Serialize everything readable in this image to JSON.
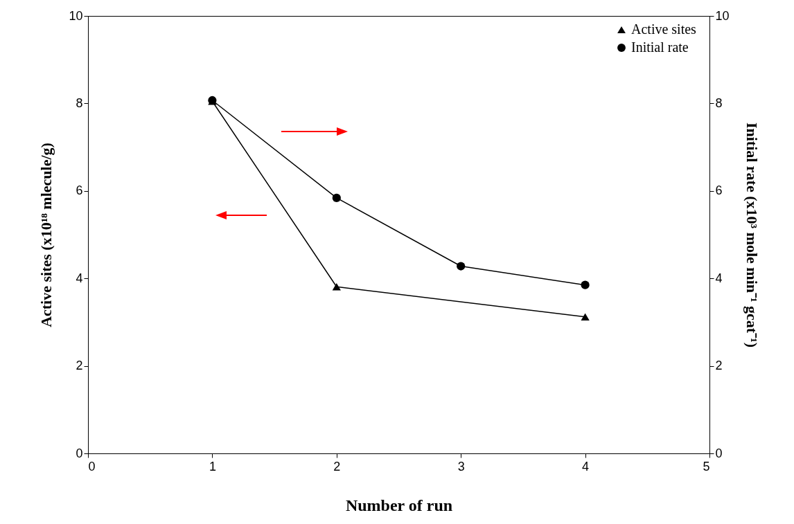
{
  "chart_data": {
    "type": "line",
    "xlabel": "Number of run",
    "ylabel": "Active sites (x10¹⁸ mlecule/g)",
    "y2label": "Initial rate (x10³ mole min⁻¹ gcat⁻¹)",
    "x": [
      1,
      2,
      3,
      4
    ],
    "series": [
      {
        "name": "Active sites",
        "color": "#000000",
        "marker": "triangle",
        "x": [
          1,
          2,
          4
        ],
        "values": [
          8.05,
          3.81,
          3.12
        ]
      },
      {
        "name": "Initial rate",
        "color": "#000000",
        "marker": "circle",
        "axis": "y2",
        "values": [
          8.07,
          5.84,
          4.28,
          3.85
        ]
      }
    ],
    "xlim": [
      0,
      5
    ],
    "xticks": [
      0,
      1,
      2,
      3,
      4,
      5
    ],
    "ylim": [
      0,
      10
    ],
    "yticks": [
      0,
      2,
      4,
      6,
      8,
      10
    ],
    "y2lim": [
      0,
      10
    ],
    "y2ticks": [
      0,
      2,
      4,
      6,
      8,
      10
    ],
    "grid": false,
    "legend": "top right",
    "line_style": "solid"
  }
}
